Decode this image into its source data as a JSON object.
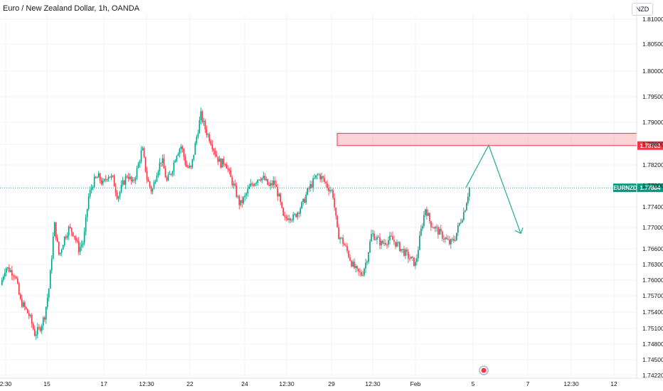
{
  "header": {
    "title": "Euro / New Zealand Dollar, 1h, OANDA",
    "currency": "NZD"
  },
  "chart_data": {
    "type": "candlestick",
    "symbol": "EURNZD",
    "ylim": [
      1.7422,
      1.8125
    ],
    "y_ticks": [
      "1.81000",
      "1.80500",
      "1.80000",
      "1.79500",
      "1.79000",
      "1.78600",
      "1.78200",
      "1.77800",
      "1.77400",
      "1.77000",
      "1.76600",
      "1.76300",
      "1.76000",
      "1.75700",
      "1.75400",
      "1.75100",
      "1.74800",
      "1.74500",
      "1.74220"
    ],
    "x_ticks": [
      "2:30",
      "15",
      "17",
      "12:30",
      "22",
      "24",
      "12:30",
      "29",
      "12:30",
      "Feb",
      "5",
      "7",
      "12:30",
      "12"
    ],
    "last_price": {
      "label": "EURNZD",
      "value": 1.77884,
      "text": "1.77884"
    },
    "resistance_zone": {
      "low": 1.78703,
      "high": 1.7894,
      "text": "1.78703",
      "color": "#f23645"
    },
    "forecast_path": [
      [
        655,
        1.7789
      ],
      [
        687,
        1.7871
      ],
      [
        732,
        1.77
      ]
    ],
    "path": [
      1.76,
      1.7635,
      1.7628,
      1.762,
      1.757,
      1.7555,
      1.7538,
      1.7505,
      1.7515,
      1.754,
      1.76,
      1.772,
      1.7655,
      1.769,
      1.771,
      1.77,
      1.767,
      1.7685,
      1.777,
      1.78,
      1.781,
      1.7795,
      1.7815,
      1.7805,
      1.777,
      1.7795,
      1.7815,
      1.7795,
      1.7825,
      1.7865,
      1.7805,
      1.778,
      1.782,
      1.7845,
      1.78,
      1.782,
      1.7855,
      1.787,
      1.783,
      1.7825,
      1.788,
      1.793,
      1.79,
      1.788,
      1.7855,
      1.7835,
      1.784,
      1.781,
      1.7785,
      1.7755,
      1.777,
      1.779,
      1.78,
      1.781,
      1.7805,
      1.779,
      1.78,
      1.777,
      1.7725,
      1.7735,
      1.773,
      1.7745,
      1.776,
      1.7785,
      1.78,
      1.7815,
      1.7805,
      1.779,
      1.778,
      1.77,
      1.7685,
      1.7665,
      1.764,
      1.7625,
      1.762,
      1.765,
      1.77,
      1.769,
      1.768,
      1.7685,
      1.769,
      1.768,
      1.767,
      1.766,
      1.765,
      1.764,
      1.77,
      1.775,
      1.772,
      1.771,
      1.77,
      1.769,
      1.768,
      1.769,
      1.772,
      1.7745,
      1.7789
    ],
    "colors": {
      "up": "#089981",
      "down": "#f23645",
      "grid": "#f0f3fa",
      "axis": "#e0e3eb",
      "forecast": "#22ab94"
    },
    "event_marker": {
      "x_label": "Feb"
    }
  }
}
